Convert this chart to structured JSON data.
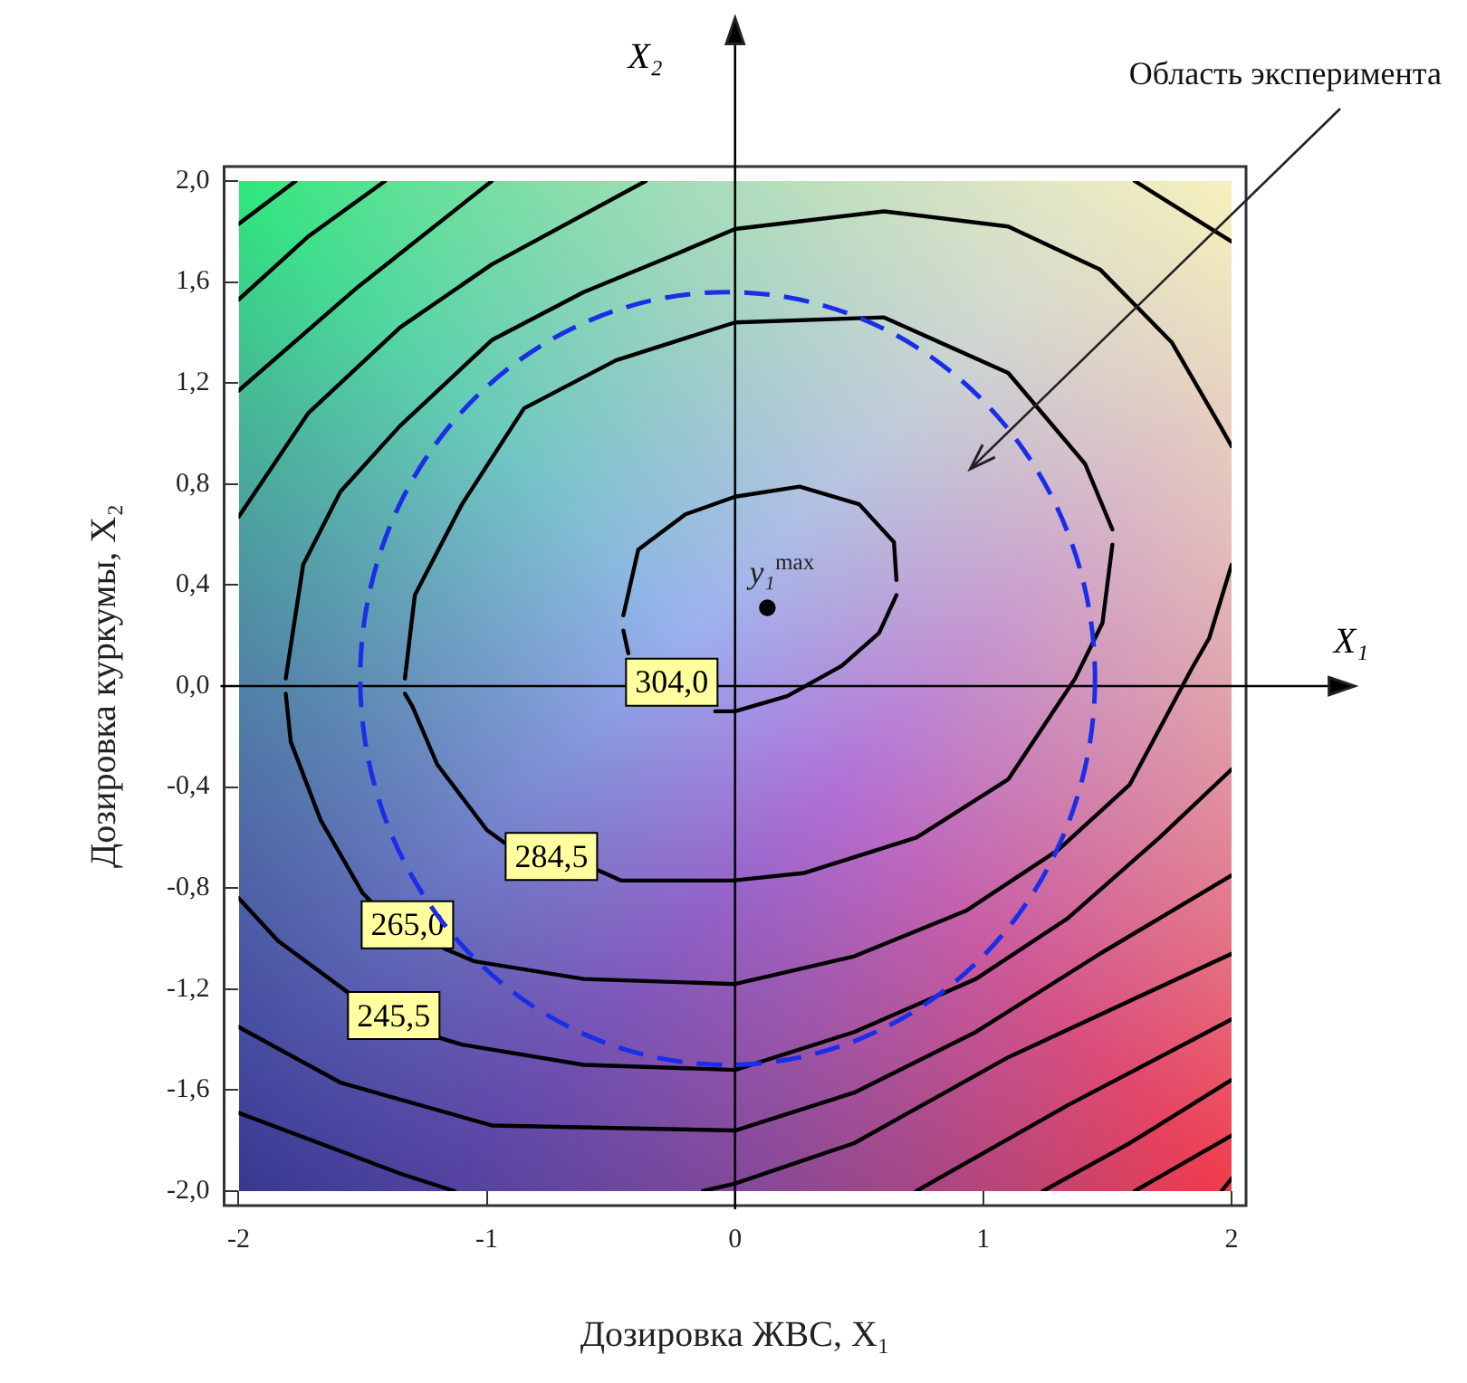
{
  "chart_data": {
    "type": "line",
    "xlabel": "Дозировка ЖВС, X₁",
    "ylabel": "Дозировка куркумы, X₂",
    "xlim": [
      -2,
      2
    ],
    "ylim": [
      -2,
      2
    ],
    "xticks": [
      -2,
      -1,
      0,
      1,
      2
    ],
    "yticks": [
      {
        "value": -2,
        "label": "-2,0"
      },
      {
        "value": -1.6,
        "label": "-1,6"
      },
      {
        "value": -1.2,
        "label": "-1,2"
      },
      {
        "value": -0.8,
        "label": "-0,8"
      },
      {
        "value": -0.4,
        "label": "-0,4"
      },
      {
        "value": 0,
        "label": "0,0"
      },
      {
        "value": 0.4,
        "label": "0,4"
      },
      {
        "value": 0.8,
        "label": "0,8"
      },
      {
        "value": 1.2,
        "label": "1,2"
      },
      {
        "value": 1.6,
        "label": "1,6"
      },
      {
        "value": 2,
        "label": "2,0"
      }
    ],
    "grid": false,
    "legend": false,
    "marker": "none",
    "line_style": "solid",
    "ref_lines": [
      {
        "axis": "x",
        "value": 0,
        "label": "X₂",
        "color": "#000000"
      },
      {
        "axis": "y",
        "value": 0,
        "label": "X₁",
        "color": "#000000"
      }
    ],
    "annotations": [
      "Область эксперимента"
    ],
    "series": [
      {
        "color": "#000000",
        "x": [
          -0.45,
          -0.39,
          -0.2,
          0,
          0.26,
          0.5,
          0.64,
          0.65
        ],
        "values": [
          0.28,
          0.54,
          0.68,
          0.75,
          0.79,
          0.72,
          0.57,
          0.42
        ]
      },
      {
        "name": "304,0",
        "color": "#000000",
        "x": [
          -0.45,
          -0.43,
          -0.27,
          -0.08,
          0,
          0.21,
          0.43,
          0.58,
          0.65
        ],
        "values": [
          0.22,
          0.13,
          null,
          -0.1,
          -0.1,
          -0.04,
          0.08,
          0.21,
          0.36
        ]
      },
      {
        "color": "#000000",
        "x": [
          -1.33,
          -1.29,
          -1.1,
          -0.85,
          -0.48,
          0,
          0.6,
          1.1,
          1.41,
          1.52
        ],
        "values": [
          0.03,
          0.36,
          0.72,
          1.1,
          1.29,
          1.44,
          1.46,
          1.24,
          0.88,
          0.62
        ]
      },
      {
        "name": "284,5",
        "color": "#000000",
        "x": [
          -1.33,
          -1.3,
          -1.2,
          -1,
          -0.93,
          -0.74,
          -0.55,
          -0.46,
          -0.01,
          0.28,
          0.73,
          1.1,
          1.37,
          1.48,
          1.52
        ],
        "values": [
          -0.03,
          -0.08,
          -0.31,
          -0.57,
          -0.62,
          null,
          -0.73,
          -0.77,
          -0.77,
          -0.74,
          -0.6,
          -0.37,
          0.03,
          0.25,
          0.56
        ]
      },
      {
        "color": "#000000",
        "x": [
          -1.81,
          -1.74,
          -1.59,
          -1.35,
          -0.98,
          -0.61,
          -0.24,
          0,
          0.6,
          1.1,
          1.47,
          1.76,
          1.96,
          2
        ],
        "values": [
          0.03,
          0.48,
          0.77,
          1.03,
          1.37,
          1.56,
          1.71,
          1.81,
          1.88,
          1.82,
          1.65,
          1.36,
          1.02,
          0.95
        ]
      },
      {
        "name": "265,0",
        "color": "#000000",
        "x": [
          -1.81,
          -1.79,
          -1.67,
          -1.5,
          -1.47,
          -1.3,
          -1.17,
          -1.05,
          -0.61,
          0,
          0.48,
          0.93,
          1.3,
          1.59,
          1.84,
          1.91,
          2
        ],
        "values": [
          -0.03,
          -0.22,
          -0.53,
          -0.82,
          -0.85,
          null,
          -1.04,
          -1.09,
          -1.16,
          -1.18,
          -1.07,
          -0.89,
          -0.65,
          -0.39,
          0.07,
          0.19,
          0.48
        ]
      },
      {
        "name": "245,5",
        "color": "#000000",
        "x": [
          -2,
          -1.84,
          -1.55,
          -1.38,
          -1.2,
          -1.1,
          -0.61,
          0,
          0.48,
          0.97,
          1.34,
          1.71,
          2
        ],
        "values": [
          -0.84,
          -1.01,
          -1.22,
          null,
          -1.39,
          -1.42,
          -1.5,
          -1.52,
          -1.37,
          -1.16,
          -0.92,
          -0.6,
          -0.33
        ]
      },
      {
        "color": "#000000",
        "x": [
          -2,
          -1.72,
          -1.35,
          -0.98,
          -0.36
        ],
        "values": [
          0.67,
          1.08,
          1.42,
          1.67,
          2
        ]
      },
      {
        "color": "#000000",
        "x": [
          1.61,
          2
        ],
        "values": [
          2,
          1.76
        ]
      },
      {
        "color": "#000000",
        "x": [
          -2,
          -1.72,
          -1.41
        ],
        "values": [
          1.53,
          1.78,
          2
        ]
      },
      {
        "color": "#000000",
        "x": [
          -2,
          -1.77
        ],
        "values": [
          1.83,
          2
        ]
      },
      {
        "color": "#000000",
        "x": [
          -2,
          -1.52,
          -0.98
        ],
        "values": [
          1.17,
          1.58,
          2
        ]
      },
      {
        "color": "#000000",
        "x": [
          -2,
          -1.59,
          -0.98,
          0,
          0.48,
          0.97,
          1.47,
          2
        ],
        "values": [
          -1.35,
          -1.57,
          -1.74,
          -1.76,
          -1.61,
          -1.37,
          -1.06,
          -0.75
        ]
      },
      {
        "color": "#000000",
        "x": [
          -2,
          -1.35,
          -1.13
        ],
        "values": [
          -1.69,
          -1.93,
          -2
        ]
      },
      {
        "color": "#000000",
        "x": [
          -0.13,
          0,
          0.48,
          1.1,
          2
        ],
        "values": [
          -2,
          -1.97,
          -1.81,
          -1.47,
          -1.06
        ]
      },
      {
        "color": "#000000",
        "x": [
          0.73,
          1.34,
          2
        ],
        "values": [
          -2,
          -1.66,
          -1.32
        ]
      },
      {
        "color": "#000000",
        "x": [
          1.24,
          1.59,
          2
        ],
        "values": [
          -2,
          -1.81,
          -1.56
        ]
      },
      {
        "color": "#000000",
        "x": [
          1.61,
          2
        ],
        "values": [
          -2,
          -1.78
        ]
      },
      {
        "color": "#000000",
        "x": [
          1.96,
          2
        ],
        "values": [
          -2,
          -1.95
        ]
      },
      {
        "type": "scatter",
        "name": "y₁$^{max}$",
        "marker": "circle",
        "color": "#000000",
        "x": [
          0.13
        ],
        "values": [
          0.31
        ]
      }
    ]
  }
}
